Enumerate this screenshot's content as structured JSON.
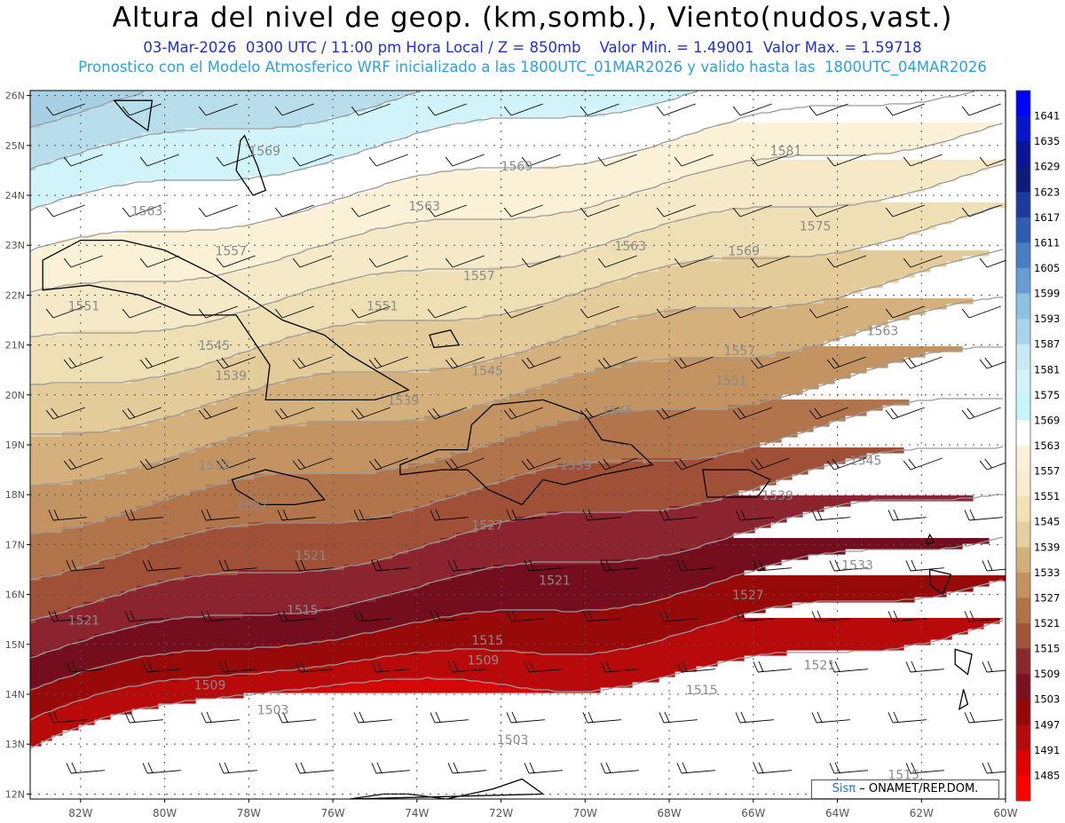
{
  "header": {
    "title": "Altura del nivel de geop. (km,somb.), Viento(nudos,vast.)",
    "subtitle_line1": "03-Mar-2026  0300 UTC / 11:00 pm Hora Local / Z = 850mb    Valor Min. = 1.49001  Valor Max. = 1.59718",
    "subtitle_line2": "Pronostico con el Modelo Atmosferico WRF inicializado a las 1800UTC_01MAR2026 y valido hasta las  1800UTC_04MAR2026"
  },
  "map": {
    "lon_labels": [
      "82W",
      "80W",
      "78W",
      "76W",
      "74W",
      "72W",
      "70W",
      "68W",
      "66W",
      "64W",
      "62W",
      "60W"
    ],
    "lat_labels": [
      "26N",
      "25N",
      "24N",
      "23N",
      "22N",
      "21N",
      "20N",
      "19N",
      "18N",
      "17N",
      "16N",
      "15N",
      "14N",
      "13N",
      "12N"
    ],
    "extent": {
      "lon_min": -83.2,
      "lon_max": -60,
      "lat_min": 11.9,
      "lat_max": 26.1
    },
    "contour_labels": [
      {
        "text": "1569",
        "lon": -78.0,
        "lat": 24.8
      },
      {
        "text": "1569",
        "lon": -72.0,
        "lat": 24.5
      },
      {
        "text": "1581",
        "lon": -65.6,
        "lat": 24.8
      },
      {
        "text": "1563",
        "lon": -80.8,
        "lat": 23.6
      },
      {
        "text": "1563",
        "lon": -74.2,
        "lat": 23.7
      },
      {
        "text": "1575",
        "lon": -64.9,
        "lat": 23.3
      },
      {
        "text": "1557",
        "lon": -78.8,
        "lat": 22.8
      },
      {
        "text": "1563",
        "lon": -69.3,
        "lat": 22.9
      },
      {
        "text": "1569",
        "lon": -66.6,
        "lat": 22.8
      },
      {
        "text": "1557",
        "lon": -72.9,
        "lat": 22.3
      },
      {
        "text": "1551",
        "lon": -82.3,
        "lat": 21.7
      },
      {
        "text": "1551",
        "lon": -75.2,
        "lat": 21.7
      },
      {
        "text": "1563",
        "lon": -63.3,
        "lat": 21.2
      },
      {
        "text": "1545",
        "lon": -79.2,
        "lat": 20.9
      },
      {
        "text": "1557",
        "lon": -66.7,
        "lat": 20.8
      },
      {
        "text": "1545",
        "lon": -72.7,
        "lat": 20.4
      },
      {
        "text": "1539",
        "lon": -78.8,
        "lat": 20.3
      },
      {
        "text": "1551",
        "lon": -66.9,
        "lat": 20.2
      },
      {
        "text": "1539",
        "lon": -74.7,
        "lat": 19.8
      },
      {
        "text": "1545",
        "lon": -69.6,
        "lat": 19.6
      },
      {
        "text": "1539",
        "lon": -70.6,
        "lat": 18.5
      },
      {
        "text": "1545",
        "lon": -63.7,
        "lat": 18.6
      },
      {
        "text": "1533",
        "lon": -79.2,
        "lat": 18.5
      },
      {
        "text": "1539",
        "lon": -65.8,
        "lat": 17.9
      },
      {
        "text": "1527",
        "lon": -78.3,
        "lat": 17.7
      },
      {
        "text": "1527",
        "lon": -72.7,
        "lat": 17.3
      },
      {
        "text": "1521",
        "lon": -76.9,
        "lat": 16.7
      },
      {
        "text": "1533",
        "lon": -63.9,
        "lat": 16.5
      },
      {
        "text": "1521",
        "lon": -71.1,
        "lat": 16.2
      },
      {
        "text": "1527",
        "lon": -66.5,
        "lat": 15.9
      },
      {
        "text": "1521",
        "lon": -82.3,
        "lat": 15.4
      },
      {
        "text": "1515",
        "lon": -77.1,
        "lat": 15.6
      },
      {
        "text": "1515",
        "lon": -72.7,
        "lat": 15.0
      },
      {
        "text": "1509",
        "lon": -72.8,
        "lat": 14.6
      },
      {
        "text": "1521",
        "lon": -64.8,
        "lat": 14.5
      },
      {
        "text": "1509",
        "lon": -79.3,
        "lat": 14.1
      },
      {
        "text": "1515",
        "lon": -67.6,
        "lat": 14.0
      },
      {
        "text": "1503",
        "lon": -77.8,
        "lat": 13.6
      },
      {
        "text": "1503",
        "lon": -72.1,
        "lat": 13.0
      },
      {
        "text": "1515",
        "lon": -62.8,
        "lat": 12.3
      }
    ]
  },
  "colorbar": {
    "labels": [
      "1641",
      "1635",
      "1629",
      "1623",
      "1617",
      "1611",
      "1605",
      "1599",
      "1593",
      "1587",
      "1581",
      "1575",
      "1569",
      "1563",
      "1557",
      "1551",
      "1545",
      "1539",
      "1533",
      "1527",
      "1521",
      "1515",
      "1509",
      "1503",
      "1497",
      "1491",
      "1485"
    ],
    "colors": [
      "#0000ff",
      "#0a14c8",
      "#0c1496",
      "#101a78",
      "#1e3aa0",
      "#325cb4",
      "#4a7cc4",
      "#689cd2",
      "#8ec0e2",
      "#aad2e8",
      "#c8e8f2",
      "#d4f2fa",
      "#c6f6fa",
      "#ffffff",
      "#fbf1d8",
      "#f7ecd2",
      "#f0e1b6",
      "#e4cfa0",
      "#d2b07a",
      "#c29260",
      "#b07448",
      "#a05538",
      "#8a2830",
      "#7a1020",
      "#960808",
      "#b40c0c",
      "#e00000",
      "#ff0000"
    ]
  },
  "credit": {
    "logo": "Sisπ",
    "text": "– ONAMET/REP.DOM."
  }
}
